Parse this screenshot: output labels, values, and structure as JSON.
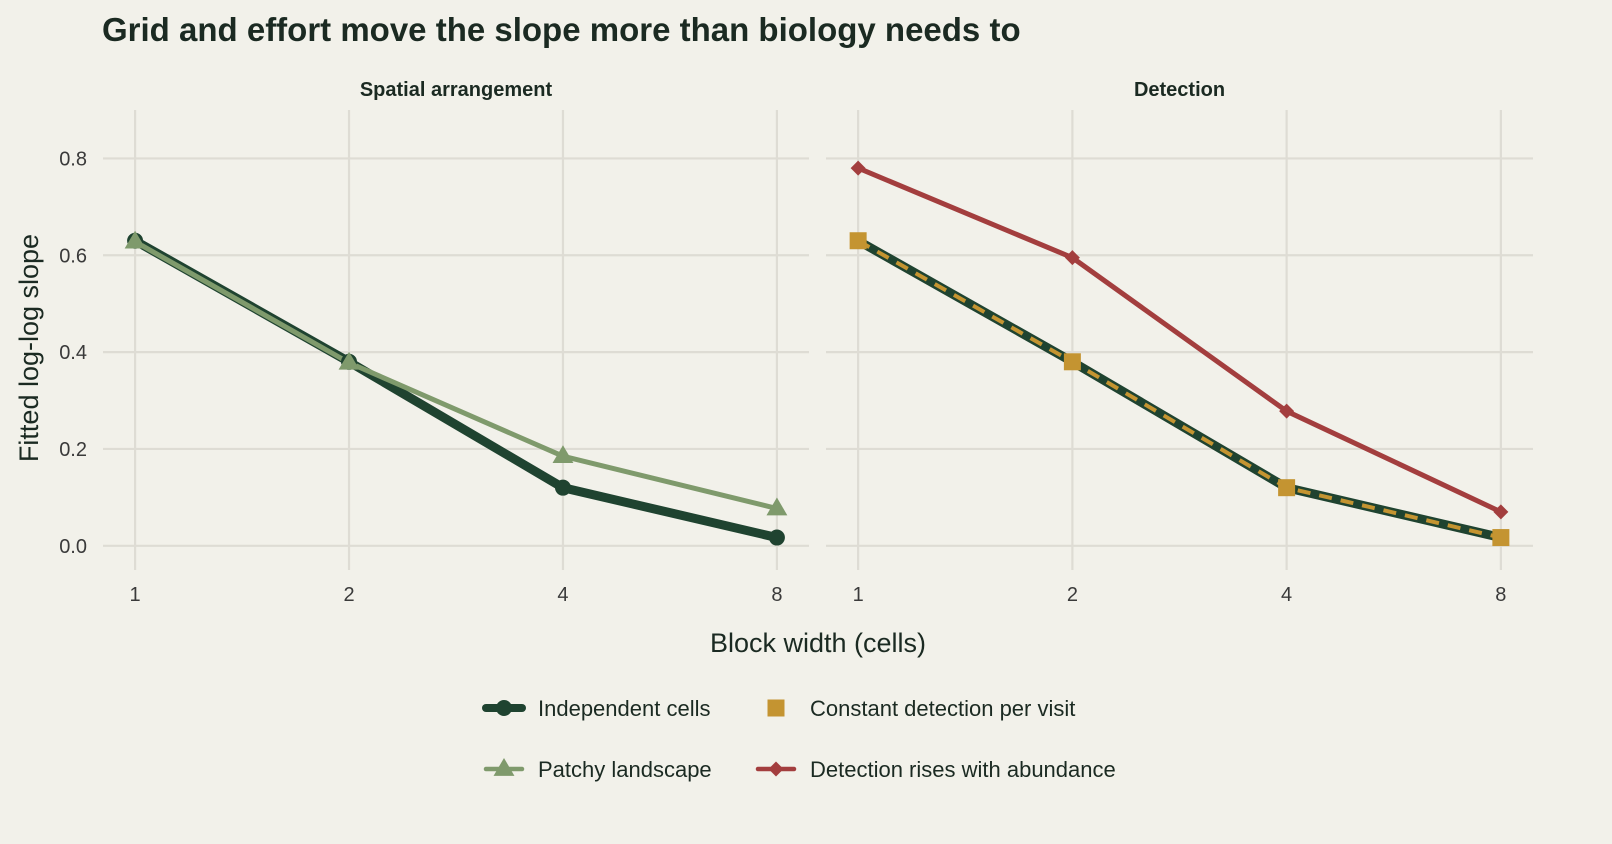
{
  "title": "Grid and effort move the slope more than biology needs to",
  "chart_data": {
    "type": "line",
    "title": "Grid and effort move the slope more than biology needs to",
    "xlabel": "Block width (cells)",
    "ylabel": "Fitted log-log slope",
    "x_scale": "log2",
    "x_ticks": [
      "1",
      "2",
      "4",
      "8"
    ],
    "y_ticks": [
      "0.0",
      "0.2",
      "0.4",
      "0.6",
      "0.8"
    ],
    "ylim": [
      -0.05,
      0.9
    ],
    "grid": true,
    "legend_position": "bottom",
    "panels": [
      {
        "title": "Spatial arrangement",
        "series": [
          {
            "name": "Independent cells",
            "color": "#1f4330",
            "marker": "circle",
            "x": [
              1,
              2,
              4,
              8
            ],
            "values": [
              0.63,
              0.38,
              0.12,
              0.017
            ]
          },
          {
            "name": "Patchy landscape",
            "color": "#7f9a6c",
            "marker": "triangle",
            "x": [
              1,
              2,
              4,
              8
            ],
            "values": [
              0.628,
              0.378,
              0.185,
              0.077
            ]
          }
        ]
      },
      {
        "title": "Detection",
        "series": [
          {
            "name": "Independent cells",
            "color": "#1f4330",
            "marker": "none",
            "x": [
              1,
              2,
              4,
              8
            ],
            "values": [
              0.63,
              0.38,
              0.12,
              0.017
            ]
          },
          {
            "name": "Constant detection per visit",
            "color": "#c49431",
            "marker": "square",
            "dashed": true,
            "x": [
              1,
              2,
              4,
              8
            ],
            "values": [
              0.63,
              0.38,
              0.12,
              0.017
            ]
          },
          {
            "name": "Detection rises with abundance",
            "color": "#a33e3e",
            "marker": "diamond",
            "x": [
              1,
              2,
              4,
              8
            ],
            "values": [
              0.78,
              0.595,
              0.278,
              0.07
            ]
          }
        ]
      }
    ],
    "legend": [
      {
        "name": "Independent cells",
        "color": "#1f4330",
        "marker": "circle"
      },
      {
        "name": "Constant detection per visit",
        "color": "#c49431",
        "marker": "square"
      },
      {
        "name": "Patchy landscape",
        "color": "#7f9a6c",
        "marker": "triangle"
      },
      {
        "name": "Detection rises with abundance",
        "color": "#a33e3e",
        "marker": "diamond"
      }
    ]
  }
}
